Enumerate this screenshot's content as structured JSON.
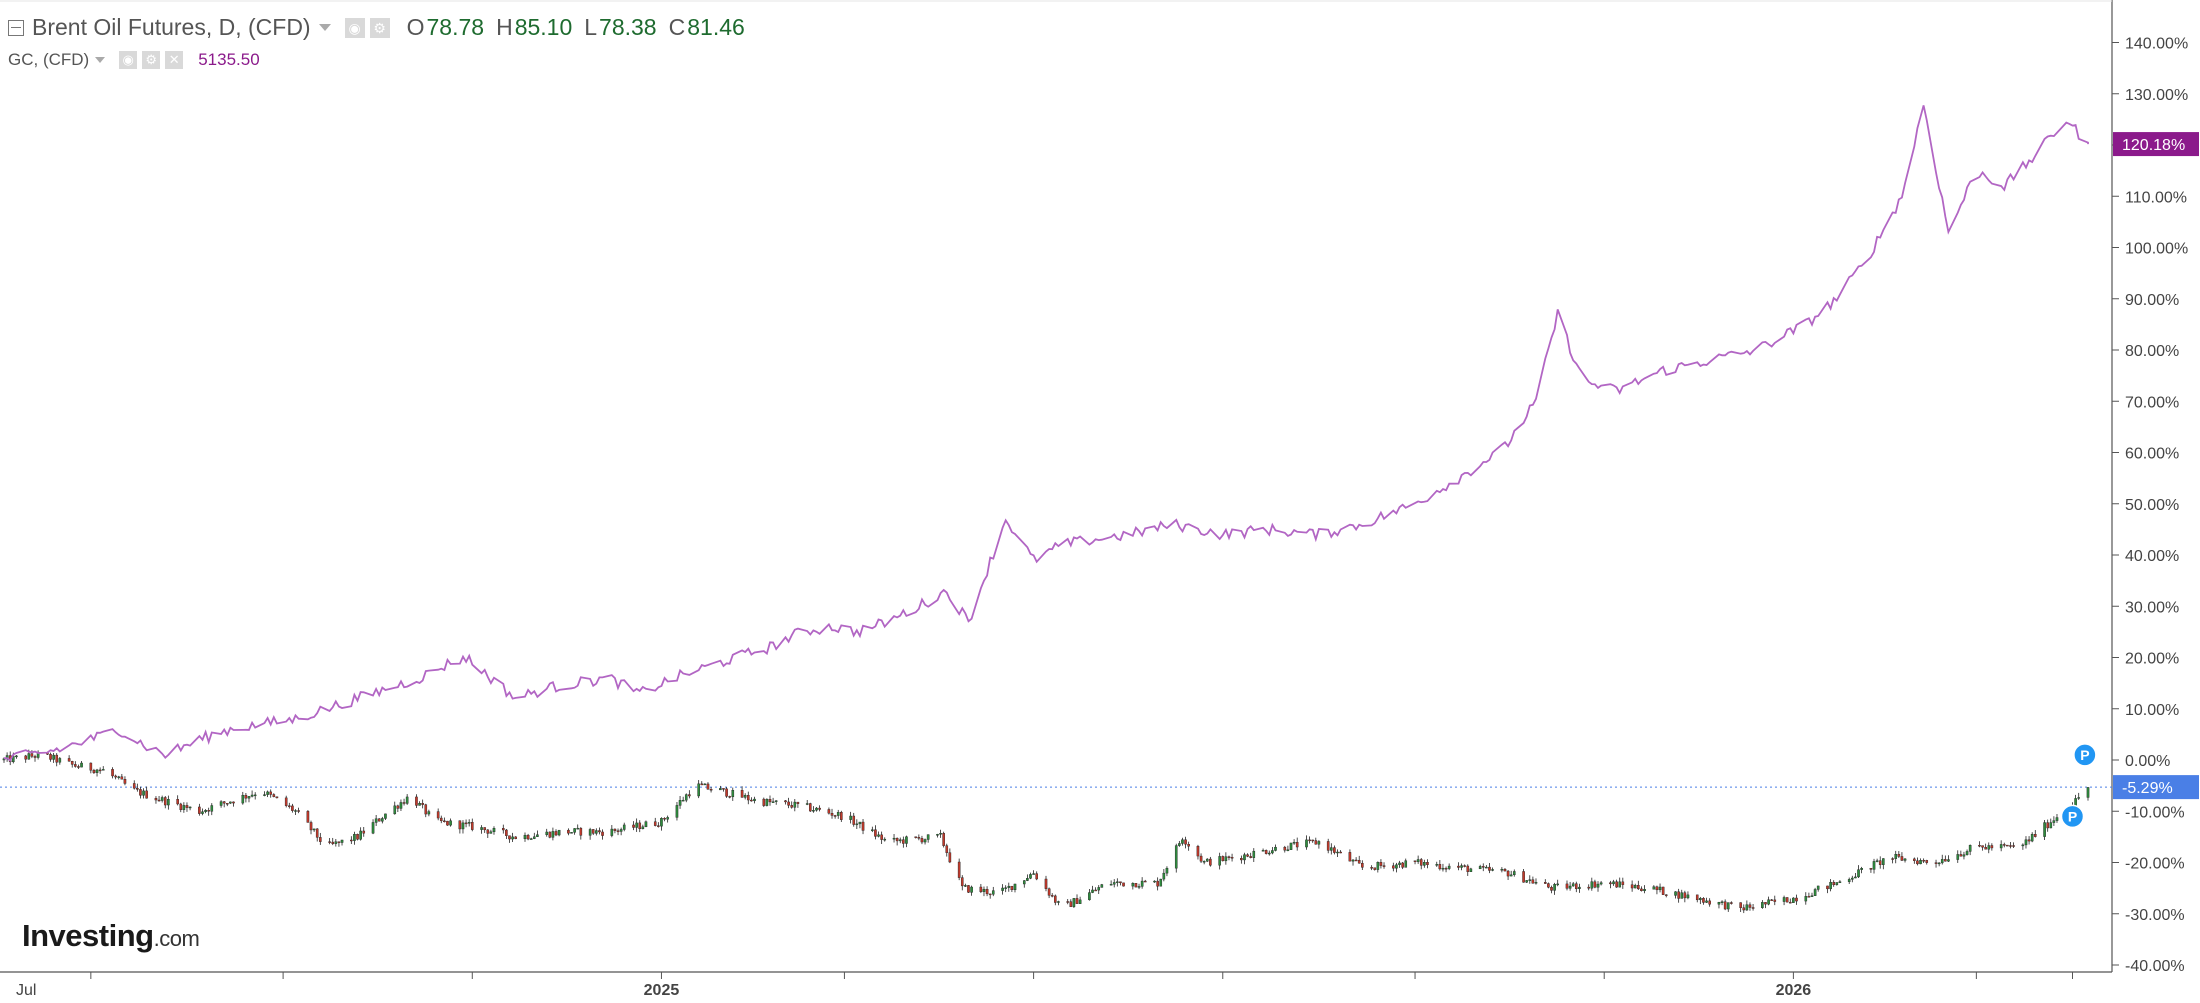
{
  "legend": {
    "primary": {
      "title": "Brent Oil Futures, D, (CFD)",
      "open_label": "O",
      "open": "78.78",
      "high_label": "H",
      "high": "85.10",
      "low_label": "L",
      "low": "78.38",
      "close_label": "C",
      "close": "81.46"
    },
    "secondary": {
      "title": "GC, (CFD)",
      "value": "5135.50"
    }
  },
  "logo": {
    "main": "Investing",
    "suffix": ".com"
  },
  "colors": {
    "gold_line": "#b266c4",
    "gold_badge": "#8b1a8b",
    "brent_badge": "#4a7fe6",
    "candle_up": "#2e8b3d",
    "candle_down": "#c0392b",
    "marker": "#2196f3"
  },
  "icons": [
    "collapse-icon",
    "visibility-icon",
    "settings-icon",
    "close-icon",
    "caret-down-icon"
  ],
  "chart_data": {
    "type": "line",
    "y_axis_unit": "percent",
    "ylim": [
      -42,
      145
    ],
    "y_ticks": [
      "140.00%",
      "130.00%",
      "120.00%",
      "110.00%",
      "100.00%",
      "90.00%",
      "80.00%",
      "70.00%",
      "60.00%",
      "50.00%",
      "40.00%",
      "30.00%",
      "20.00%",
      "10.00%",
      "0.00%",
      "-10.00%",
      "-20.00%",
      "-30.00%",
      "-40.00%"
    ],
    "x_ticks": [
      "Jul",
      "2025",
      "2026"
    ],
    "grid": false,
    "series": [
      {
        "name": "GC, (CFD)",
        "style": "line",
        "last_value_label": "120.18%",
        "points": [
          [
            "2024-06-03",
            0
          ],
          [
            "2024-06-20",
            2
          ],
          [
            "2024-07-01",
            4
          ],
          [
            "2024-07-10",
            6
          ],
          [
            "2024-07-18",
            3
          ],
          [
            "2024-07-25",
            1
          ],
          [
            "2024-08-05",
            4
          ],
          [
            "2024-08-15",
            6
          ],
          [
            "2024-08-25",
            7
          ],
          [
            "2024-09-05",
            8
          ],
          [
            "2024-09-15",
            10
          ],
          [
            "2024-09-25",
            12
          ],
          [
            "2024-10-05",
            14
          ],
          [
            "2024-10-15",
            16
          ],
          [
            "2024-10-25",
            19
          ],
          [
            "2024-10-30",
            20
          ],
          [
            "2024-11-05",
            17
          ],
          [
            "2024-11-15",
            12
          ],
          [
            "2024-11-25",
            14
          ],
          [
            "2024-12-05",
            15
          ],
          [
            "2024-12-15",
            16
          ],
          [
            "2024-12-25",
            13
          ],
          [
            "2025-01-05",
            16
          ],
          [
            "2025-01-15",
            18
          ],
          [
            "2025-01-25",
            20
          ],
          [
            "2025-02-05",
            22
          ],
          [
            "2025-02-15",
            25
          ],
          [
            "2025-02-25",
            26
          ],
          [
            "2025-03-05",
            25
          ],
          [
            "2025-03-15",
            27
          ],
          [
            "2025-03-25",
            30
          ],
          [
            "2025-04-03",
            33
          ],
          [
            "2025-04-10",
            27
          ],
          [
            "2025-04-22",
            47
          ],
          [
            "2025-05-01",
            39
          ],
          [
            "2025-05-10",
            42
          ],
          [
            "2025-05-20",
            43
          ],
          [
            "2025-06-01",
            44
          ],
          [
            "2025-06-15",
            46
          ],
          [
            "2025-07-01",
            44
          ],
          [
            "2025-07-15",
            45
          ],
          [
            "2025-08-01",
            44
          ],
          [
            "2025-08-15",
            46
          ],
          [
            "2025-09-01",
            50
          ],
          [
            "2025-09-15",
            55
          ],
          [
            "2025-09-30",
            61
          ],
          [
            "2025-10-10",
            70
          ],
          [
            "2025-10-17",
            87
          ],
          [
            "2025-10-25",
            74
          ],
          [
            "2025-11-05",
            72
          ],
          [
            "2025-11-20",
            76
          ],
          [
            "2025-12-05",
            78
          ],
          [
            "2025-12-20",
            80
          ],
          [
            "2026-01-05",
            85
          ],
          [
            "2026-01-15",
            90
          ],
          [
            "2026-01-25",
            98
          ],
          [
            "2026-02-05",
            110
          ],
          [
            "2026-02-12",
            128
          ],
          [
            "2026-02-20",
            103
          ],
          [
            "2026-03-01",
            115
          ],
          [
            "2026-03-10",
            112
          ],
          [
            "2026-03-20",
            118
          ],
          [
            "2026-03-30",
            125
          ],
          [
            "2026-04-06",
            120.18
          ]
        ]
      },
      {
        "name": "Brent Oil Futures, D, (CFD)",
        "style": "candlestick",
        "last_value_label": "-5.29%",
        "points": [
          [
            "2024-06-03",
            0
          ],
          [
            "2024-06-15",
            1
          ],
          [
            "2024-06-25",
            -1
          ],
          [
            "2024-07-05",
            -2
          ],
          [
            "2024-07-15",
            -6
          ],
          [
            "2024-07-25",
            -8
          ],
          [
            "2024-08-05",
            -10
          ],
          [
            "2024-08-15",
            -8
          ],
          [
            "2024-08-25",
            -6
          ],
          [
            "2024-09-05",
            -10
          ],
          [
            "2024-09-15",
            -17
          ],
          [
            "2024-09-25",
            -15
          ],
          [
            "2024-10-05",
            -10
          ],
          [
            "2024-10-12",
            -7
          ],
          [
            "2024-10-20",
            -12
          ],
          [
            "2024-11-01",
            -13
          ],
          [
            "2024-11-15",
            -15
          ],
          [
            "2024-12-01",
            -14
          ],
          [
            "2024-12-15",
            -14
          ],
          [
            "2025-01-01",
            -12
          ],
          [
            "2025-01-12",
            -5
          ],
          [
            "2025-01-20",
            -6
          ],
          [
            "2025-02-01",
            -8
          ],
          [
            "2025-02-15",
            -9
          ],
          [
            "2025-03-01",
            -11
          ],
          [
            "2025-03-15",
            -16
          ],
          [
            "2025-04-01",
            -15
          ],
          [
            "2025-04-08",
            -25
          ],
          [
            "2025-04-20",
            -26
          ],
          [
            "2025-05-01",
            -22
          ],
          [
            "2025-05-10",
            -29
          ],
          [
            "2025-05-25",
            -24
          ],
          [
            "2025-06-10",
            -24
          ],
          [
            "2025-06-18",
            -15
          ],
          [
            "2025-06-25",
            -20
          ],
          [
            "2025-07-05",
            -19
          ],
          [
            "2025-07-20",
            -17
          ],
          [
            "2025-08-01",
            -16
          ],
          [
            "2025-08-15",
            -21
          ],
          [
            "2025-09-01",
            -20
          ],
          [
            "2025-09-15",
            -21
          ],
          [
            "2025-10-01",
            -22
          ],
          [
            "2025-10-15",
            -25
          ],
          [
            "2025-11-01",
            -24
          ],
          [
            "2025-11-15",
            -25
          ],
          [
            "2025-12-01",
            -27
          ],
          [
            "2025-12-15",
            -29
          ],
          [
            "2026-01-01",
            -27
          ],
          [
            "2026-01-15",
            -24
          ],
          [
            "2026-02-01",
            -19
          ],
          [
            "2026-02-15",
            -20
          ],
          [
            "2026-03-01",
            -17
          ],
          [
            "2026-03-15",
            -17
          ],
          [
            "2026-03-25",
            -12
          ],
          [
            "2026-04-02",
            -8
          ],
          [
            "2026-04-06",
            -5.29
          ]
        ]
      }
    ],
    "reference_line": {
      "series": "Brent Oil Futures, D, (CFD)",
      "value": -5.29,
      "style": "dotted"
    },
    "markers": [
      {
        "label": "P",
        "date": "2026-04-01",
        "value": -11
      },
      {
        "label": "P",
        "date": "2026-04-05",
        "value": 1
      }
    ]
  }
}
